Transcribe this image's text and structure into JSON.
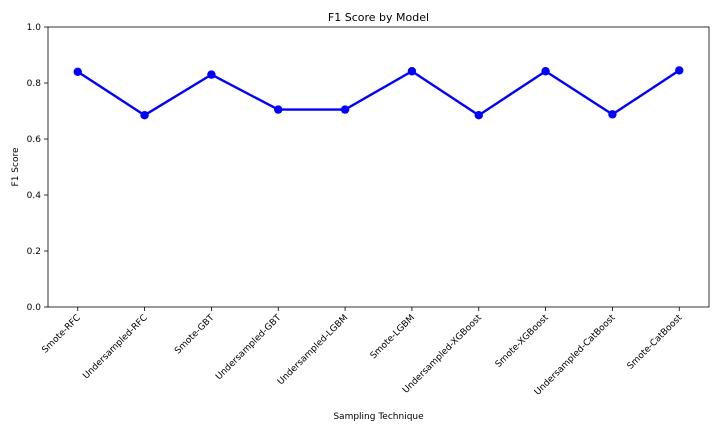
{
  "chart_data": {
    "type": "line",
    "title": "F1 Score by Model",
    "xlabel": "Sampling Technique",
    "ylabel": "F1 Score",
    "categories": [
      "Smote-RFC",
      "Undersampled-RFC",
      "Smote-GBT",
      "Undersampled-GBT",
      "Undersampled-LGBM",
      "Smote-LGBM",
      "Undersampled-XGBoost",
      "Smote-XGBoost",
      "Undersampled-CatBoost",
      "Smote-CatBoost"
    ],
    "series": [
      {
        "values": [
          0.84,
          0.685,
          0.83,
          0.705,
          0.705,
          0.842,
          0.685,
          0.842,
          0.688,
          0.845
        ],
        "color": "#0000ff"
      }
    ],
    "ylim": [
      0.0,
      1.0
    ],
    "yticks": [
      "0.0",
      "0.2",
      "0.4",
      "0.6",
      "0.8",
      "1.0"
    ],
    "grid": false,
    "legend": "none"
  }
}
